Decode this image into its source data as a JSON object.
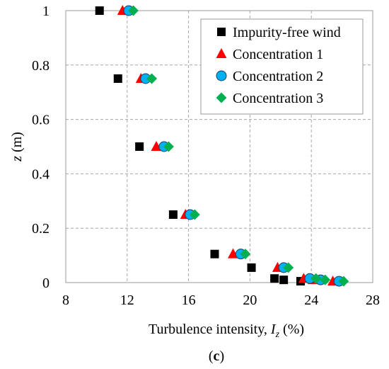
{
  "chart_data": {
    "type": "scatter",
    "xlabel": "Turbulence intensity, ",
    "xlabel_var": "I",
    "xlabel_sub": "z",
    "xlabel_unit": " (%)",
    "ylabel_var": "z",
    "ylabel_unit": " (m)",
    "caption_open": "(",
    "caption_letter": "c",
    "caption_close": ")",
    "xlim": [
      8,
      28
    ],
    "ylim": [
      0,
      1
    ],
    "xticks": [
      8,
      12,
      16,
      20,
      24,
      28
    ],
    "yticks": [
      0,
      0.2,
      0.4,
      0.6,
      0.8,
      1
    ],
    "xtick_labels": [
      "8",
      "12",
      "16",
      "20",
      "24",
      "28"
    ],
    "ytick_labels": [
      "0",
      "0.2",
      "0.4",
      "0.6",
      "0.8",
      "1"
    ],
    "grid": true,
    "legend_position": "top-right",
    "series": [
      {
        "name": "Impurity-free wind",
        "marker": "square",
        "color": "#000000",
        "x": [
          10.2,
          11.4,
          12.8,
          15.0,
          17.7,
          20.1,
          21.6,
          22.2,
          23.3
        ],
        "y": [
          1.0,
          0.75,
          0.5,
          0.25,
          0.105,
          0.055,
          0.015,
          0.01,
          0.005
        ]
      },
      {
        "name": "Concentration 1",
        "marker": "triangle",
        "color": "#ff0000",
        "x": [
          11.7,
          12.9,
          13.9,
          15.8,
          18.9,
          21.8,
          23.5,
          24.1,
          25.4
        ],
        "y": [
          1.0,
          0.75,
          0.5,
          0.25,
          0.105,
          0.055,
          0.015,
          0.01,
          0.005
        ]
      },
      {
        "name": "Concentration 2",
        "marker": "circle",
        "color": "#00b0f0",
        "x": [
          12.1,
          13.2,
          14.4,
          16.1,
          19.4,
          22.2,
          23.9,
          24.6,
          25.8
        ],
        "y": [
          1.0,
          0.75,
          0.5,
          0.25,
          0.105,
          0.055,
          0.015,
          0.01,
          0.005
        ]
      },
      {
        "name": "Concentration 3",
        "marker": "diamond",
        "color": "#00b050",
        "x": [
          12.4,
          13.6,
          14.7,
          16.4,
          19.7,
          22.5,
          24.3,
          24.9,
          26.1
        ],
        "y": [
          1.0,
          0.75,
          0.5,
          0.25,
          0.105,
          0.055,
          0.015,
          0.01,
          0.005
        ]
      }
    ]
  }
}
